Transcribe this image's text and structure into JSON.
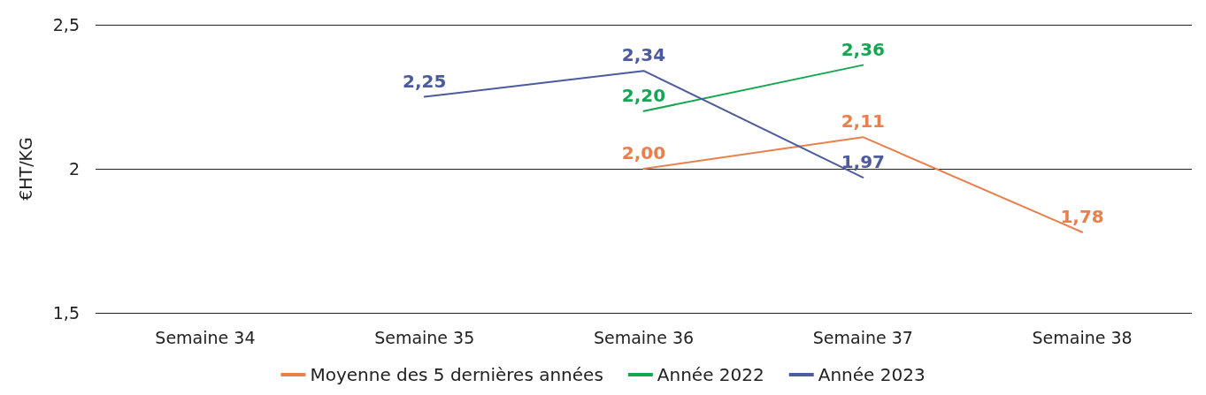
{
  "chart_data": {
    "type": "line",
    "ylabel": "€HT/KG",
    "categories": [
      "Semaine 34",
      "Semaine 35",
      "Semaine 36",
      "Semaine 37",
      "Semaine 38"
    ],
    "series": [
      {
        "name": "Moyenne des 5 dernières années",
        "color": "#e8804e",
        "values": [
          null,
          null,
          2.0,
          2.11,
          1.78
        ],
        "value_labels": [
          null,
          null,
          "2,00",
          "2,11",
          "1,78"
        ]
      },
      {
        "name": "Année 2022",
        "color": "#14a751",
        "values": [
          null,
          null,
          2.2,
          2.36,
          null
        ],
        "value_labels": [
          null,
          null,
          "2,20",
          "2,36",
          null
        ]
      },
      {
        "name": "Année 2023",
        "color": "#4c5b9e",
        "values": [
          null,
          2.25,
          2.34,
          1.97,
          null
        ],
        "value_labels": [
          null,
          "2,25",
          "2,34",
          "1,97",
          null
        ]
      }
    ],
    "ylim": [
      1.5,
      2.5
    ],
    "yticks": [
      {
        "value": 1.5,
        "label": "1,5"
      },
      {
        "value": 2,
        "label": "2"
      },
      {
        "value": 2.5,
        "label": "2,5"
      }
    ],
    "grid": "y",
    "legend": "bottom",
    "marker": "none",
    "line_style": "solid"
  }
}
